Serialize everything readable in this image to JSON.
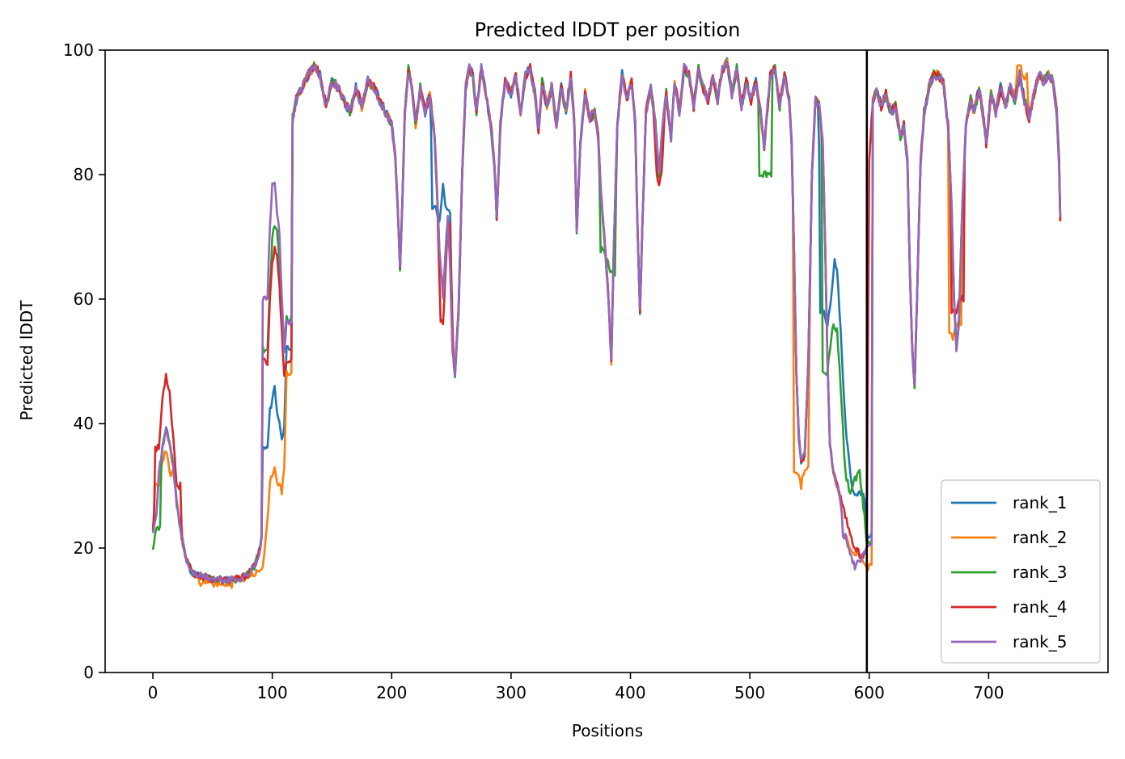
{
  "chart_data": {
    "type": "line",
    "title": "Predicted lDDT per position",
    "xlabel": "Positions",
    "ylabel": "Predicted lDDT",
    "xlim": [
      -40,
      800
    ],
    "ylim": [
      0,
      100
    ],
    "xticks": [
      0,
      100,
      200,
      300,
      400,
      500,
      600,
      700
    ],
    "yticks": [
      0,
      20,
      40,
      60,
      80,
      100
    ],
    "grid": false,
    "legend_position": "lower-right",
    "chain_boundary_x": 598,
    "base_profile": [
      [
        0,
        23
      ],
      [
        3,
        26
      ],
      [
        5,
        32
      ],
      [
        8,
        36
      ],
      [
        11,
        39
      ],
      [
        14,
        37
      ],
      [
        17,
        33
      ],
      [
        20,
        27
      ],
      [
        24,
        22
      ],
      [
        28,
        18
      ],
      [
        33,
        16
      ],
      [
        40,
        15.5
      ],
      [
        50,
        15
      ],
      [
        60,
        14.8
      ],
      [
        70,
        15
      ],
      [
        78,
        15.5
      ],
      [
        85,
        17
      ],
      [
        90,
        20
      ],
      [
        93,
        26
      ],
      [
        96,
        36
      ],
      [
        98,
        48
      ],
      [
        100,
        62
      ],
      [
        102,
        72
      ],
      [
        104,
        74
      ],
      [
        106,
        70
      ],
      [
        108,
        62
      ],
      [
        110,
        52
      ],
      [
        112,
        55
      ],
      [
        114,
        75
      ],
      [
        116,
        88
      ],
      [
        120,
        92
      ],
      [
        125,
        94
      ],
      [
        130,
        96
      ],
      [
        135,
        97.5
      ],
      [
        140,
        96
      ],
      [
        145,
        91
      ],
      [
        150,
        95
      ],
      [
        155,
        94
      ],
      [
        160,
        92
      ],
      [
        165,
        90
      ],
      [
        170,
        94
      ],
      [
        175,
        91
      ],
      [
        180,
        95
      ],
      [
        185,
        94
      ],
      [
        190,
        92
      ],
      [
        195,
        90
      ],
      [
        200,
        88
      ],
      [
        203,
        83
      ],
      [
        205,
        75
      ],
      [
        207,
        65
      ],
      [
        209,
        76
      ],
      [
        211,
        90
      ],
      [
        214,
        97
      ],
      [
        217,
        94
      ],
      [
        220,
        88
      ],
      [
        224,
        94
      ],
      [
        228,
        90
      ],
      [
        232,
        93
      ],
      [
        236,
        86
      ],
      [
        240,
        68
      ],
      [
        243,
        60
      ],
      [
        245,
        67
      ],
      [
        247,
        73
      ],
      [
        249,
        65
      ],
      [
        251,
        52
      ],
      [
        253,
        48
      ],
      [
        256,
        58
      ],
      [
        259,
        80
      ],
      [
        262,
        94
      ],
      [
        265,
        97
      ],
      [
        268,
        96
      ],
      [
        271,
        90
      ],
      [
        275,
        97
      ],
      [
        279,
        93
      ],
      [
        283,
        88
      ],
      [
        286,
        82
      ],
      [
        288,
        73
      ],
      [
        291,
        88
      ],
      [
        295,
        95
      ],
      [
        300,
        93
      ],
      [
        304,
        96
      ],
      [
        308,
        90
      ],
      [
        312,
        96
      ],
      [
        316,
        97
      ],
      [
        320,
        93
      ],
      [
        323,
        87
      ],
      [
        326,
        95
      ],
      [
        330,
        91
      ],
      [
        334,
        94
      ],
      [
        338,
        88
      ],
      [
        342,
        94
      ],
      [
        346,
        90
      ],
      [
        350,
        96
      ],
      [
        353,
        88
      ],
      [
        355,
        71
      ],
      [
        358,
        85
      ],
      [
        362,
        93
      ],
      [
        366,
        89
      ],
      [
        370,
        90
      ],
      [
        373,
        86
      ],
      [
        375,
        78
      ],
      [
        378,
        70
      ],
      [
        381,
        62
      ],
      [
        384,
        50
      ],
      [
        386,
        68
      ],
      [
        389,
        88
      ],
      [
        393,
        96
      ],
      [
        397,
        92
      ],
      [
        401,
        95
      ],
      [
        404,
        88
      ],
      [
        406,
        71
      ],
      [
        408,
        58
      ],
      [
        410,
        72
      ],
      [
        413,
        90
      ],
      [
        417,
        94
      ],
      [
        421,
        88
      ],
      [
        424,
        80
      ],
      [
        427,
        88
      ],
      [
        430,
        93
      ],
      [
        434,
        86
      ],
      [
        437,
        95
      ],
      [
        441,
        90
      ],
      [
        445,
        97
      ],
      [
        449,
        96
      ],
      [
        453,
        91
      ],
      [
        457,
        97
      ],
      [
        461,
        94
      ],
      [
        465,
        92
      ],
      [
        469,
        96
      ],
      [
        473,
        92
      ],
      [
        477,
        97
      ],
      [
        481,
        98
      ],
      [
        485,
        93
      ],
      [
        489,
        97
      ],
      [
        493,
        91
      ],
      [
        497,
        95
      ],
      [
        501,
        92
      ],
      [
        505,
        95
      ],
      [
        509,
        90
      ],
      [
        512,
        84
      ],
      [
        514,
        89
      ],
      [
        517,
        96
      ],
      [
        521,
        97
      ],
      [
        525,
        91
      ],
      [
        529,
        96
      ],
      [
        533,
        92
      ],
      [
        535,
        85
      ],
      [
        537,
        68
      ],
      [
        539,
        48
      ],
      [
        541,
        38
      ],
      [
        543,
        34
      ],
      [
        546,
        35
      ],
      [
        549,
        50
      ],
      [
        552,
        80
      ],
      [
        555,
        92
      ],
      [
        558,
        91
      ],
      [
        561,
        85
      ],
      [
        563,
        70
      ],
      [
        565,
        50
      ],
      [
        567,
        37
      ],
      [
        570,
        32
      ],
      [
        573,
        30
      ],
      [
        576,
        28
      ],
      [
        580,
        25
      ],
      [
        584,
        22
      ],
      [
        588,
        20
      ],
      [
        592,
        19
      ],
      [
        596,
        19
      ],
      [
        598,
        20
      ],
      [
        600,
        82
      ],
      [
        603,
        92
      ],
      [
        606,
        94
      ],
      [
        610,
        91
      ],
      [
        614,
        93
      ],
      [
        618,
        90
      ],
      [
        622,
        91
      ],
      [
        626,
        86
      ],
      [
        629,
        88
      ],
      [
        632,
        82
      ],
      [
        634,
        65
      ],
      [
        636,
        52
      ],
      [
        638,
        46
      ],
      [
        640,
        60
      ],
      [
        643,
        82
      ],
      [
        646,
        90
      ],
      [
        650,
        94
      ],
      [
        654,
        96
      ],
      [
        658,
        96
      ],
      [
        662,
        95
      ],
      [
        666,
        88
      ],
      [
        669,
        75
      ],
      [
        671,
        60
      ],
      [
        673,
        52
      ],
      [
        675,
        56
      ],
      [
        678,
        75
      ],
      [
        681,
        88
      ],
      [
        685,
        92
      ],
      [
        688,
        90
      ],
      [
        692,
        94
      ],
      [
        695,
        90
      ],
      [
        698,
        85
      ],
      [
        702,
        93
      ],
      [
        706,
        90
      ],
      [
        710,
        94
      ],
      [
        714,
        91
      ],
      [
        718,
        94
      ],
      [
        722,
        92
      ],
      [
        726,
        96
      ],
      [
        730,
        92
      ],
      [
        734,
        89
      ],
      [
        738,
        93
      ],
      [
        742,
        96
      ],
      [
        746,
        95
      ],
      [
        750,
        96
      ],
      [
        754,
        95
      ],
      [
        757,
        90
      ],
      [
        759,
        82
      ],
      [
        760,
        73
      ]
    ],
    "series": [
      {
        "name": "rank_1",
        "color": "#1f77b4",
        "seed": 11,
        "overrides": [
          [
            96,
            36
          ],
          [
            98,
            42
          ],
          [
            100,
            44
          ],
          [
            102,
            46
          ],
          [
            104,
            42
          ],
          [
            106,
            40
          ],
          [
            108,
            38
          ],
          [
            110,
            39
          ],
          [
            112,
            52
          ],
          [
            237,
            75
          ],
          [
            240,
            72
          ],
          [
            243,
            78
          ],
          [
            246,
            74
          ],
          [
            562,
            58
          ],
          [
            565,
            56
          ],
          [
            568,
            60
          ],
          [
            571,
            66
          ],
          [
            573,
            65
          ],
          [
            576,
            55
          ],
          [
            580,
            40
          ],
          [
            584,
            32
          ],
          [
            588,
            28
          ],
          [
            592,
            29
          ],
          [
            596,
            28
          ],
          [
            598,
            22
          ]
        ]
      },
      {
        "name": "rank_2",
        "color": "#ff7f0e",
        "seed": 23,
        "overrides": [
          [
            5,
            30
          ],
          [
            8,
            34
          ],
          [
            11,
            36
          ],
          [
            14,
            32
          ],
          [
            40,
            14.5
          ],
          [
            50,
            14
          ],
          [
            60,
            13.5
          ],
          [
            70,
            14.5
          ],
          [
            80,
            15.5
          ],
          [
            88,
            16
          ],
          [
            92,
            17
          ],
          [
            96,
            24
          ],
          [
            98,
            30
          ],
          [
            100,
            32
          ],
          [
            102,
            33
          ],
          [
            104,
            31
          ],
          [
            106,
            30
          ],
          [
            108,
            29
          ],
          [
            110,
            33
          ],
          [
            112,
            48
          ],
          [
            541,
            32
          ],
          [
            543,
            30
          ],
          [
            546,
            33
          ],
          [
            580,
            22
          ],
          [
            584,
            20
          ],
          [
            588,
            19
          ],
          [
            592,
            19
          ],
          [
            596,
            18
          ],
          [
            598,
            17
          ],
          [
            671,
            54
          ],
          [
            673,
            56
          ],
          [
            726,
            97
          ],
          [
            730,
            96
          ]
        ]
      },
      {
        "name": "rank_3",
        "color": "#2ca02c",
        "seed": 37,
        "overrides": [
          [
            0,
            19.5
          ],
          [
            3,
            23
          ],
          [
            96,
            52
          ],
          [
            98,
            62
          ],
          [
            100,
            70
          ],
          [
            102,
            72
          ],
          [
            104,
            71
          ],
          [
            106,
            66
          ],
          [
            108,
            58
          ],
          [
            110,
            53
          ],
          [
            112,
            57
          ],
          [
            512,
            80
          ],
          [
            514,
            80
          ],
          [
            378,
            68
          ],
          [
            381,
            66
          ],
          [
            384,
            64
          ],
          [
            565,
            48
          ],
          [
            567,
            52
          ],
          [
            570,
            56
          ],
          [
            573,
            55
          ],
          [
            576,
            46
          ],
          [
            580,
            32
          ],
          [
            584,
            29
          ],
          [
            588,
            31
          ],
          [
            592,
            32
          ],
          [
            596,
            25
          ],
          [
            598,
            21
          ]
        ]
      },
      {
        "name": "rank_4",
        "color": "#d62728",
        "seed": 53,
        "overrides": [
          [
            5,
            36
          ],
          [
            8,
            44
          ],
          [
            11,
            48
          ],
          [
            14,
            45
          ],
          [
            17,
            38
          ],
          [
            20,
            30
          ],
          [
            96,
            50
          ],
          [
            98,
            60
          ],
          [
            100,
            66
          ],
          [
            102,
            68
          ],
          [
            104,
            67
          ],
          [
            106,
            62
          ],
          [
            108,
            55
          ],
          [
            110,
            48
          ],
          [
            112,
            50
          ],
          [
            243,
            56
          ],
          [
            247,
            72
          ],
          [
            424,
            78
          ],
          [
            673,
            58
          ],
          [
            675,
            60
          ]
        ]
      },
      {
        "name": "rank_5",
        "color": "#9467bd",
        "seed": 71,
        "overrides": [
          [
            96,
            60
          ],
          [
            98,
            72
          ],
          [
            100,
            78
          ],
          [
            102,
            79
          ],
          [
            104,
            74
          ],
          [
            106,
            70
          ],
          [
            108,
            60
          ],
          [
            110,
            52
          ],
          [
            112,
            56
          ],
          [
            580,
            22
          ],
          [
            584,
            19
          ],
          [
            588,
            17
          ],
          [
            592,
            18
          ],
          [
            596,
            19
          ],
          [
            598,
            20
          ]
        ]
      }
    ]
  }
}
